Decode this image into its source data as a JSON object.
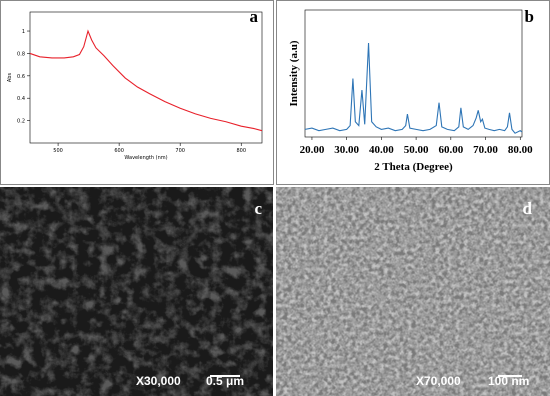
{
  "chart_data": [
    {
      "type": "line",
      "panel": "a",
      "x_label": "Wavelength (nm)",
      "y_label": "Abs",
      "xlim": [
        454,
        834
      ],
      "xticks": [
        500,
        600,
        700,
        800
      ],
      "ylim": [
        0,
        1.17
      ],
      "yticks": [
        0.2,
        0.4,
        0.6,
        0.8,
        1
      ],
      "series": [
        {
          "color": "#e8202a",
          "x": [
            454,
            470,
            490,
            510,
            525,
            535,
            542,
            549,
            555,
            562,
            575,
            590,
            610,
            630,
            650,
            675,
            700,
            725,
            750,
            775,
            800,
            820,
            834
          ],
          "values": [
            0.8,
            0.77,
            0.76,
            0.76,
            0.77,
            0.79,
            0.86,
            1.0,
            0.92,
            0.85,
            0.78,
            0.69,
            0.58,
            0.5,
            0.44,
            0.37,
            0.31,
            0.26,
            0.22,
            0.19,
            0.15,
            0.13,
            0.11
          ]
        }
      ]
    },
    {
      "type": "line",
      "panel": "b",
      "x_label": "2 Theta (Degree)",
      "y_label": "Intensity (a.u)",
      "xlim": [
        18,
        80.5
      ],
      "xticks": [
        {
          "value": 20,
          "label": "20.00"
        },
        {
          "value": 30,
          "label": "30.00"
        },
        {
          "value": 40,
          "label": "40.00"
        },
        {
          "value": 50,
          "label": "50.00"
        },
        {
          "value": 60,
          "label": "60.00"
        },
        {
          "value": 70,
          "label": "70.00"
        },
        {
          "value": 80,
          "label": "80.00"
        }
      ],
      "ylim": [
        0,
        100
      ],
      "series": [
        {
          "color": "#2e75b6",
          "x": [
            18,
            20,
            22,
            24,
            26,
            28,
            30,
            31,
            31.8,
            32.5,
            33.5,
            34.4,
            35.2,
            36.3,
            37.2,
            38.5,
            40,
            42,
            44,
            46,
            47.0,
            47.5,
            48.2,
            50,
            52,
            54,
            55.8,
            56.6,
            57.4,
            59,
            61,
            62.3,
            62.9,
            63.6,
            65,
            66.4,
            67.3,
            67.9,
            68.6,
            69.1,
            69.8,
            71,
            72.5,
            74,
            75.5,
            76.3,
            76.9,
            77.6,
            78.5,
            80,
            80.5
          ],
          "values": [
            6,
            7,
            5,
            6,
            7,
            5,
            6,
            9,
            46,
            12,
            9,
            37,
            10,
            74,
            12,
            8,
            6,
            7,
            5,
            6,
            9,
            18,
            7,
            6,
            5,
            6,
            9,
            27,
            8,
            6,
            5,
            8,
            23,
            8,
            6,
            9,
            15,
            21,
            12,
            14,
            7,
            6,
            5,
            6,
            5,
            8,
            19,
            6,
            3,
            5,
            4
          ]
        }
      ]
    }
  ],
  "images": [
    {
      "label": "c",
      "magnification": "X30,000",
      "scale_bar": "0.5 μm"
    },
    {
      "label": "d",
      "magnification": "X70,000",
      "scale_bar": "100 nm"
    }
  ]
}
